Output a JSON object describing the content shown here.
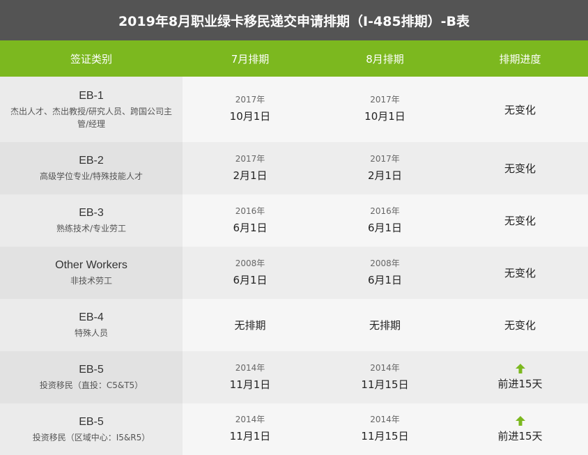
{
  "title": "2019年8月职业绿卡移民递交申请排期（I-485排期）-B表",
  "header": {
    "col1": "签证类别",
    "col2": "7月排期",
    "col3": "8月排期",
    "col4": "排期进度"
  },
  "colors": {
    "title_bg": "#545454",
    "header_bg": "#7cb81f",
    "arrow": "#7cb81f"
  },
  "rows": [
    {
      "category": "EB-1",
      "desc": "杰出人才、杰出教授/研究人员、跨国公司主管/经理",
      "july_year": "2017年",
      "july_date": "10月1日",
      "aug_year": "2017年",
      "aug_date": "10月1日",
      "progress": "无变化"
    },
    {
      "category": "EB-2",
      "desc": "高级学位专业/特殊技能人才",
      "july_year": "2017年",
      "july_date": "2月1日",
      "aug_year": "2017年",
      "aug_date": "2月1日",
      "progress": "无变化"
    },
    {
      "category": "EB-3",
      "desc": "熟练技术/专业劳工",
      "july_year": "2016年",
      "july_date": "6月1日",
      "aug_year": "2016年",
      "aug_date": "6月1日",
      "progress": "无变化"
    },
    {
      "category": "Other Workers",
      "desc": "非技术劳工",
      "july_year": "2008年",
      "july_date": "6月1日",
      "aug_year": "2008年",
      "aug_date": "6月1日",
      "progress": "无变化"
    },
    {
      "category": "EB-4",
      "desc": "特殊人员",
      "july_text": "无排期",
      "aug_text": "无排期",
      "progress": "无变化"
    },
    {
      "category": "EB-5",
      "desc": "投资移民（直投：C5&T5）",
      "july_year": "2014年",
      "july_date": "11月1日",
      "aug_year": "2014年",
      "aug_date": "11月15日",
      "progress_icon": "arrow-up-icon",
      "progress": "前进15天"
    },
    {
      "category": "EB-5",
      "desc": "投资移民（区域中心：I5&R5）",
      "july_year": "2014年",
      "july_date": "11月1日",
      "aug_year": "2014年",
      "aug_date": "11月15日",
      "progress_icon": "arrow-up-icon",
      "progress": "前进15天"
    }
  ]
}
